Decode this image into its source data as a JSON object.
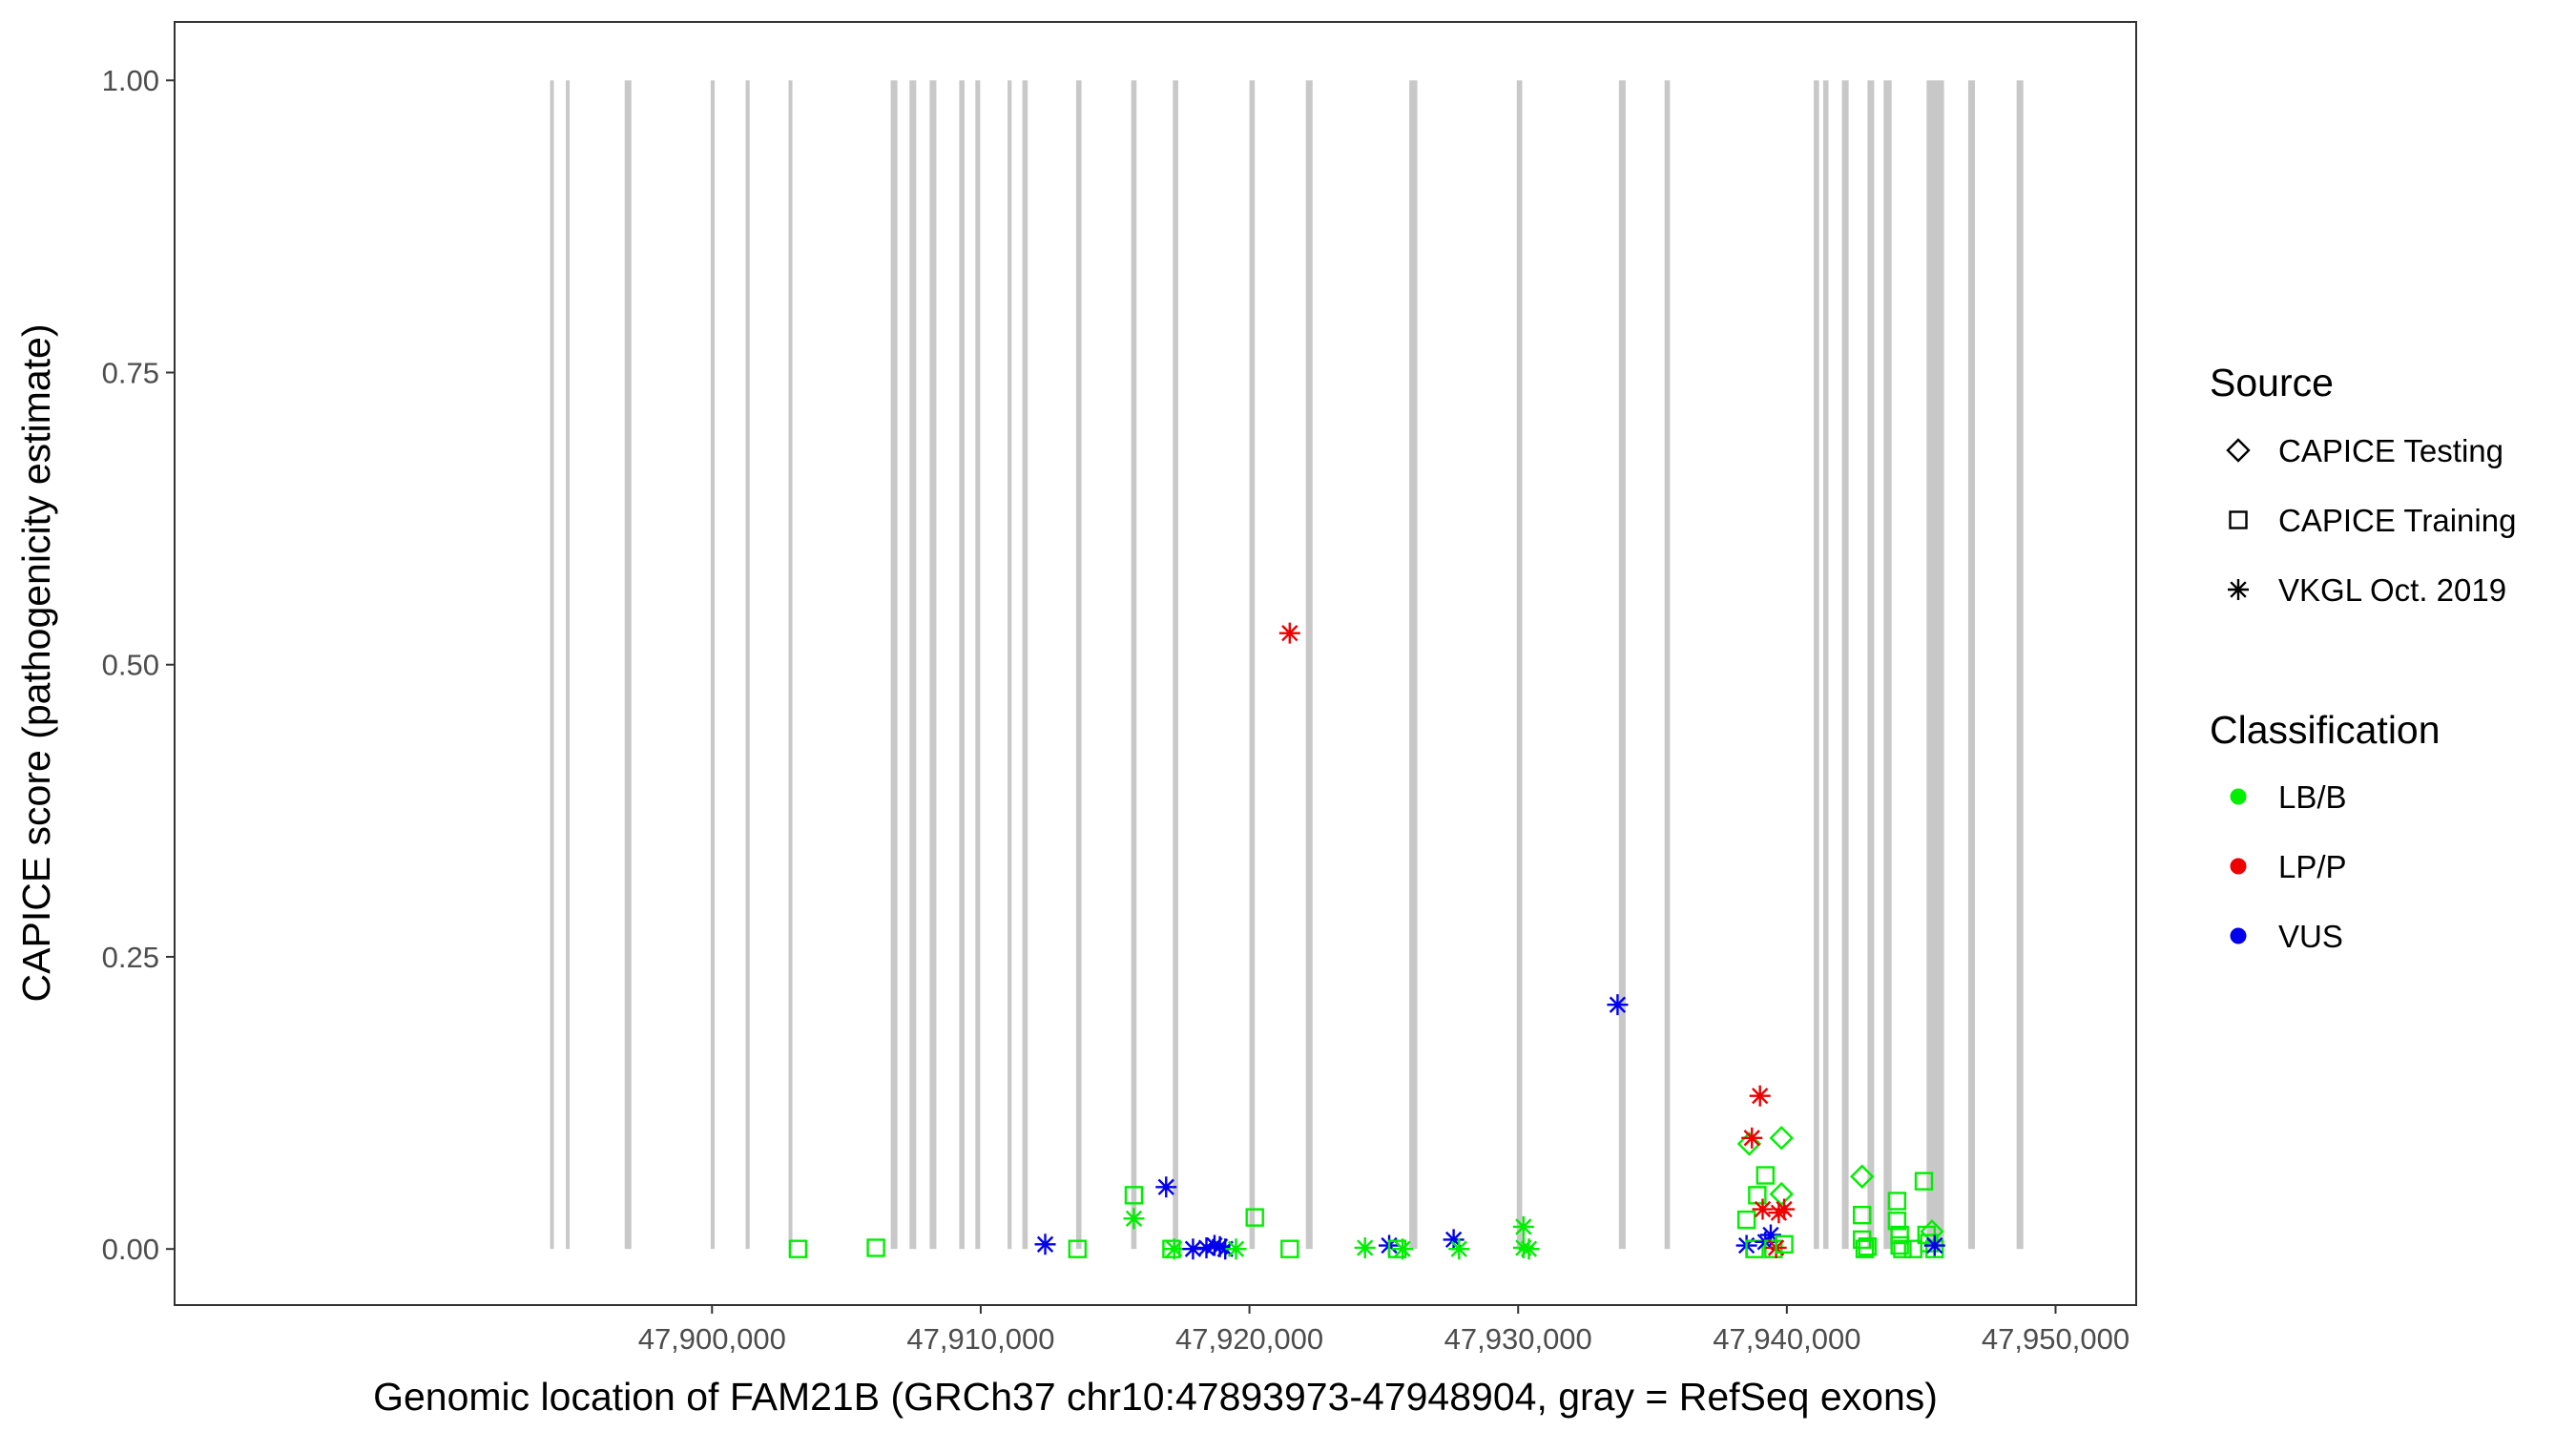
{
  "chart_data": {
    "type": "scatter",
    "xlabel": "Genomic location of FAM21B (GRCh37 chr10:47893973-47948904, gray = RefSeq exons)",
    "ylabel": "CAPICE score (pathogenicity estimate)",
    "xlim": [
      47880000,
      47953000
    ],
    "ylim": [
      -0.048,
      1.05
    ],
    "x_ticks": [
      47900000,
      47910000,
      47920000,
      47930000,
      47940000,
      47950000
    ],
    "x_tick_labels": [
      "47,900,000",
      "47,910,000",
      "47,920,000",
      "47,930,000",
      "47,940,000",
      "47,950,000"
    ],
    "y_ticks": [
      0,
      0.25,
      0.5,
      0.75,
      1
    ],
    "y_tick_labels": [
      "0.00",
      "0.25",
      "0.50",
      "0.75",
      "1.00"
    ],
    "grid": false,
    "legend_position": "right",
    "exon_color": "#c8c8c8",
    "exons": [
      [
        47893973,
        47894080
      ],
      [
        47894560,
        47894700
      ],
      [
        47896750,
        47897000
      ],
      [
        47899950,
        47900100
      ],
      [
        47901250,
        47901400
      ],
      [
        47902850,
        47902950
      ],
      [
        47906650,
        47906900
      ],
      [
        47907350,
        47907600
      ],
      [
        47908100,
        47908350
      ],
      [
        47909200,
        47909400
      ],
      [
        47909800,
        47909980
      ],
      [
        47911000,
        47911150
      ],
      [
        47911550,
        47911750
      ],
      [
        47913550,
        47913750
      ],
      [
        47915600,
        47915800
      ],
      [
        47917150,
        47917350
      ],
      [
        47920000,
        47920200
      ],
      [
        47922100,
        47922350
      ],
      [
        47925950,
        47926250
      ],
      [
        47929950,
        47930150
      ],
      [
        47933750,
        47934000
      ],
      [
        47935450,
        47935650
      ],
      [
        47941000,
        47941200
      ],
      [
        47941350,
        47941550
      ],
      [
        47942050,
        47942300
      ],
      [
        47943000,
        47943250
      ],
      [
        47943600,
        47943900
      ],
      [
        47945200,
        47945850
      ],
      [
        47946750,
        47947000
      ],
      [
        47948550,
        47948800
      ]
    ],
    "legend_source": {
      "title": "Source",
      "entries": [
        {
          "label": "CAPICE Testing",
          "shape": "diamond"
        },
        {
          "label": "CAPICE Training",
          "shape": "square"
        },
        {
          "label": "VKGL Oct. 2019",
          "shape": "asterisk"
        }
      ]
    },
    "legend_classification": {
      "title": "Classification",
      "entries": [
        {
          "label": "LB/B",
          "color": "#00ee00"
        },
        {
          "label": "LP/P",
          "color": "#ee0000"
        },
        {
          "label": "VUS",
          "color": "#0000ee"
        }
      ]
    },
    "points": [
      {
        "x": 47903200,
        "y": 0.0,
        "shape": "square",
        "class": "LB/B"
      },
      {
        "x": 47906100,
        "y": 0.001,
        "shape": "square",
        "class": "LB/B"
      },
      {
        "x": 47912400,
        "y": 0.004,
        "shape": "asterisk",
        "class": "VUS"
      },
      {
        "x": 47913600,
        "y": 0.0,
        "shape": "square",
        "class": "LB/B"
      },
      {
        "x": 47915700,
        "y": 0.046,
        "shape": "square",
        "class": "LB/B"
      },
      {
        "x": 47915700,
        "y": 0.026,
        "shape": "asterisk",
        "class": "LB/B"
      },
      {
        "x": 47916900,
        "y": 0.053,
        "shape": "asterisk",
        "class": "VUS"
      },
      {
        "x": 47917100,
        "y": 0.0,
        "shape": "square",
        "class": "LB/B"
      },
      {
        "x": 47917200,
        "y": 0.0,
        "shape": "asterisk",
        "class": "LB/B"
      },
      {
        "x": 47917900,
        "y": 0.0,
        "shape": "asterisk",
        "class": "VUS"
      },
      {
        "x": 47918400,
        "y": 0.001,
        "shape": "asterisk",
        "class": "VUS"
      },
      {
        "x": 47918700,
        "y": 0.003,
        "shape": "asterisk",
        "class": "VUS"
      },
      {
        "x": 47918900,
        "y": 0.002,
        "shape": "asterisk",
        "class": "VUS"
      },
      {
        "x": 47919100,
        "y": 0.0,
        "shape": "asterisk",
        "class": "VUS"
      },
      {
        "x": 47919500,
        "y": 0.0,
        "shape": "asterisk",
        "class": "LB/B"
      },
      {
        "x": 47920200,
        "y": 0.027,
        "shape": "square",
        "class": "LB/B"
      },
      {
        "x": 47921500,
        "y": 0.0,
        "shape": "square",
        "class": "LB/B"
      },
      {
        "x": 47921500,
        "y": 0.527,
        "shape": "asterisk",
        "class": "LP/P"
      },
      {
        "x": 47924300,
        "y": 0.001,
        "shape": "asterisk",
        "class": "LB/B"
      },
      {
        "x": 47925200,
        "y": 0.003,
        "shape": "asterisk",
        "class": "VUS"
      },
      {
        "x": 47925500,
        "y": 0.0,
        "shape": "square",
        "class": "LB/B"
      },
      {
        "x": 47925700,
        "y": 0.0,
        "shape": "asterisk",
        "class": "LB/B"
      },
      {
        "x": 47927600,
        "y": 0.008,
        "shape": "asterisk",
        "class": "VUS"
      },
      {
        "x": 47927800,
        "y": 0.0,
        "shape": "asterisk",
        "class": "LB/B"
      },
      {
        "x": 47930200,
        "y": 0.019,
        "shape": "asterisk",
        "class": "LB/B"
      },
      {
        "x": 47930200,
        "y": 0.001,
        "shape": "asterisk",
        "class": "LB/B"
      },
      {
        "x": 47930400,
        "y": 0.0,
        "shape": "asterisk",
        "class": "LB/B"
      },
      {
        "x": 47933700,
        "y": 0.209,
        "shape": "asterisk",
        "class": "VUS"
      },
      {
        "x": 47938500,
        "y": 0.025,
        "shape": "square",
        "class": "LB/B"
      },
      {
        "x": 47938600,
        "y": 0.09,
        "shape": "diamond",
        "class": "LB/B"
      },
      {
        "x": 47938700,
        "y": 0.095,
        "shape": "asterisk",
        "class": "LP/P"
      },
      {
        "x": 47938500,
        "y": 0.003,
        "shape": "asterisk",
        "class": "VUS"
      },
      {
        "x": 47938800,
        "y": 0.0,
        "shape": "square",
        "class": "LB/B"
      },
      {
        "x": 47938900,
        "y": 0.046,
        "shape": "square",
        "class": "LB/B"
      },
      {
        "x": 47939000,
        "y": 0.131,
        "shape": "asterisk",
        "class": "LP/P"
      },
      {
        "x": 47939100,
        "y": 0.034,
        "shape": "asterisk",
        "class": "LP/P"
      },
      {
        "x": 47939200,
        "y": 0.063,
        "shape": "square",
        "class": "LB/B"
      },
      {
        "x": 47939200,
        "y": 0.006,
        "shape": "asterisk",
        "class": "VUS"
      },
      {
        "x": 47939400,
        "y": 0.012,
        "shape": "asterisk",
        "class": "VUS"
      },
      {
        "x": 47939500,
        "y": 0.0,
        "shape": "square",
        "class": "LB/B"
      },
      {
        "x": 47939600,
        "y": 0.001,
        "shape": "asterisk",
        "class": "LP/P"
      },
      {
        "x": 47939700,
        "y": 0.031,
        "shape": "asterisk",
        "class": "LP/P"
      },
      {
        "x": 47939800,
        "y": 0.095,
        "shape": "diamond",
        "class": "LB/B"
      },
      {
        "x": 47939800,
        "y": 0.047,
        "shape": "diamond",
        "class": "LB/B"
      },
      {
        "x": 47939900,
        "y": 0.034,
        "shape": "asterisk",
        "class": "LP/P"
      },
      {
        "x": 47939900,
        "y": 0.004,
        "shape": "square",
        "class": "LB/B"
      },
      {
        "x": 47942800,
        "y": 0.062,
        "shape": "diamond",
        "class": "LB/B"
      },
      {
        "x": 47942800,
        "y": 0.029,
        "shape": "square",
        "class": "LB/B"
      },
      {
        "x": 47942800,
        "y": 0.008,
        "shape": "square",
        "class": "LB/B"
      },
      {
        "x": 47942900,
        "y": 0.0,
        "shape": "square",
        "class": "LB/B"
      },
      {
        "x": 47943000,
        "y": 0.002,
        "shape": "square",
        "class": "LB/B"
      },
      {
        "x": 47944100,
        "y": 0.041,
        "shape": "square",
        "class": "LB/B"
      },
      {
        "x": 47944100,
        "y": 0.024,
        "shape": "square",
        "class": "LB/B"
      },
      {
        "x": 47944200,
        "y": 0.012,
        "shape": "square",
        "class": "LB/B"
      },
      {
        "x": 47944200,
        "y": 0.003,
        "shape": "square",
        "class": "LB/B"
      },
      {
        "x": 47944300,
        "y": 0.0,
        "shape": "square",
        "class": "LB/B"
      },
      {
        "x": 47944700,
        "y": 0.0,
        "shape": "square",
        "class": "LB/B"
      },
      {
        "x": 47945100,
        "y": 0.058,
        "shape": "square",
        "class": "LB/B"
      },
      {
        "x": 47945200,
        "y": 0.012,
        "shape": "square",
        "class": "LB/B"
      },
      {
        "x": 47945300,
        "y": 0.005,
        "shape": "square",
        "class": "LB/B"
      },
      {
        "x": 47945400,
        "y": 0.015,
        "shape": "diamond",
        "class": "LB/B"
      },
      {
        "x": 47945500,
        "y": 0.0,
        "shape": "square",
        "class": "LB/B"
      },
      {
        "x": 47945500,
        "y": 0.003,
        "shape": "asterisk",
        "class": "VUS"
      }
    ]
  }
}
